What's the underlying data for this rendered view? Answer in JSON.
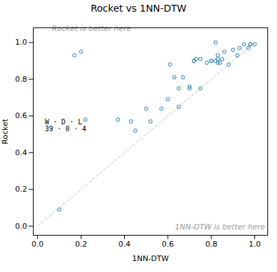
{
  "chart_data": {
    "type": "scatter",
    "title": "Rocket vs 1NN-DTW",
    "xlabel": "1NN-DTW",
    "ylabel": "Rocket",
    "xlim": [
      -0.02,
      1.06
    ],
    "ylim": [
      -0.05,
      1.08
    ],
    "xticks": [
      {
        "value": 0.0,
        "label": "0.0"
      },
      0.2,
      0.4,
      0.6,
      0.8,
      {
        "value": 1.0,
        "label": "1.0"
      }
    ],
    "yticks": [
      {
        "value": 0.0,
        "label": "0.0"
      },
      0.2,
      0.4,
      0.6,
      0.8,
      {
        "value": 1.0,
        "label": "1.0"
      }
    ],
    "grid": false,
    "color": "#1f77b4",
    "marker": "open_circle",
    "x": [
      0.1,
      0.17,
      0.2,
      0.22,
      0.37,
      0.43,
      0.45,
      0.5,
      0.52,
      0.57,
      0.6,
      0.61,
      0.63,
      0.65,
      0.65,
      0.67,
      0.7,
      0.7,
      0.72,
      0.72,
      0.73,
      0.75,
      0.75,
      0.78,
      0.8,
      0.8,
      0.82,
      0.82,
      0.83,
      0.83,
      0.83,
      0.84,
      0.85,
      0.86,
      0.88,
      0.9,
      0.92,
      0.93,
      0.95,
      0.97,
      0.98,
      0.98,
      1.0
    ],
    "y": [
      0.09,
      0.93,
      0.95,
      0.58,
      0.58,
      0.57,
      0.52,
      0.64,
      0.57,
      0.64,
      0.69,
      0.88,
      0.81,
      0.65,
      0.75,
      0.81,
      0.75,
      0.76,
      0.9,
      0.9,
      0.91,
      0.91,
      0.75,
      0.89,
      0.9,
      0.9,
      0.9,
      1.0,
      0.89,
      0.91,
      0.93,
      0.89,
      0.91,
      0.95,
      0.88,
      0.96,
      0.93,
      0.97,
      0.99,
      0.97,
      0.99,
      0.99,
      0.99
    ],
    "reference_line": {
      "x": [
        0,
        1
      ],
      "y": [
        0,
        1
      ],
      "color": "#bbbbbb",
      "line_style": "dashed"
    },
    "annotations": [
      {
        "text": "Rocket is better here",
        "color": "#999999"
      },
      {
        "text": "1NN-DTW is better here",
        "color": "#999999"
      }
    ],
    "text_box": "W · D · L\n39 · 0 · 4"
  }
}
